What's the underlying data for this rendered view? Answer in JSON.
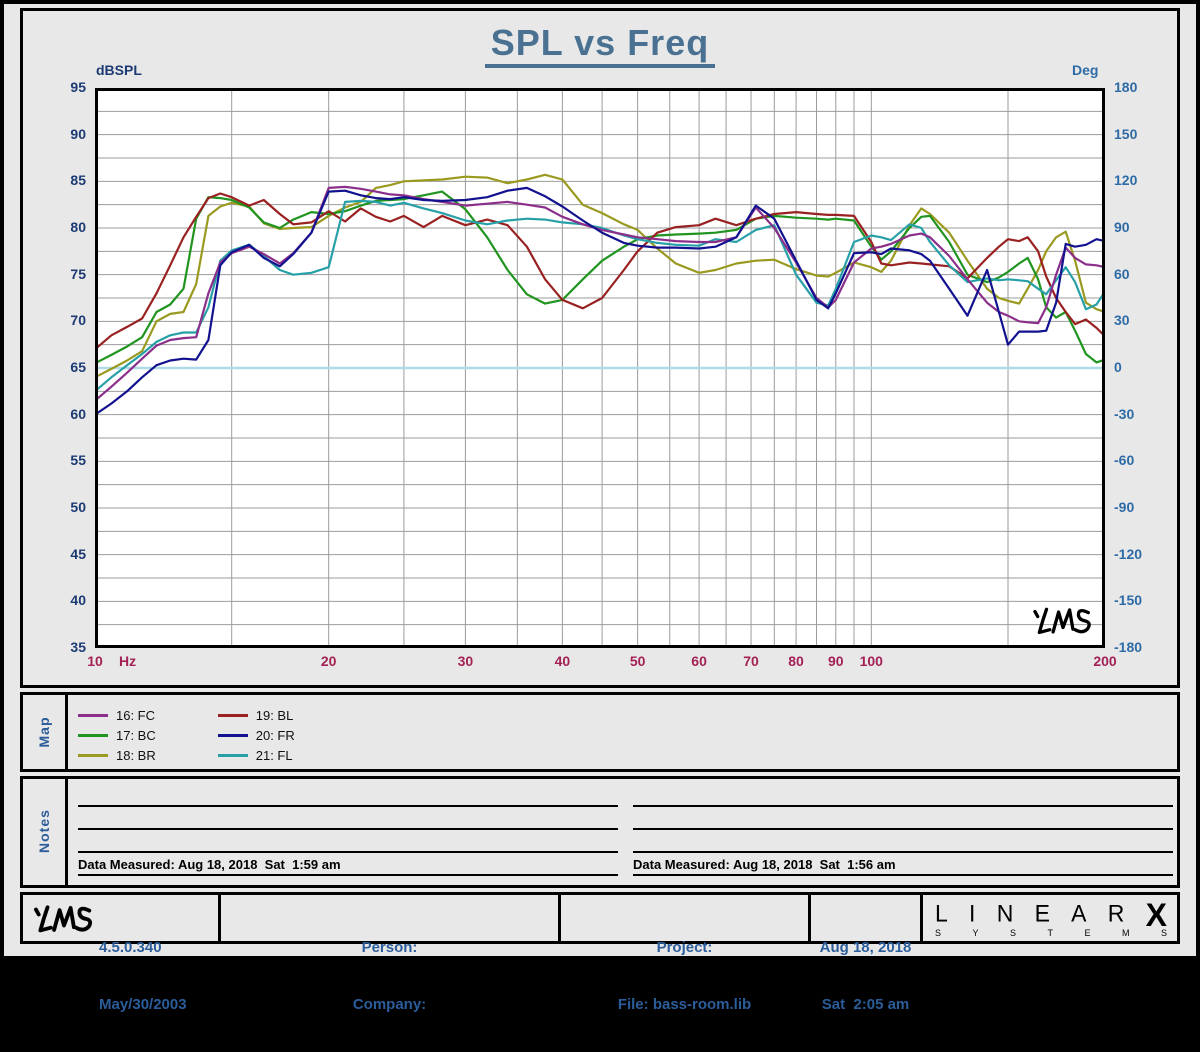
{
  "title": "SPL vs Freq",
  "chart_data": {
    "type": "line",
    "title": "SPL vs Freq",
    "x_axis": {
      "unit": "Hz",
      "scale": "log",
      "min": 10,
      "max": 200,
      "ticks": [
        {
          "f": 10,
          "label": "10"
        },
        {
          "f": 20,
          "label": "20"
        },
        {
          "f": 30,
          "label": "30"
        },
        {
          "f": 40,
          "label": "40"
        },
        {
          "f": 50,
          "label": "50"
        },
        {
          "f": 60,
          "label": "60"
        },
        {
          "f": 70,
          "label": "70"
        },
        {
          "f": 80,
          "label": "80"
        },
        {
          "f": 90,
          "label": "90"
        },
        {
          "f": 100,
          "label": "100"
        },
        {
          "f": 200,
          "label": "200"
        }
      ]
    },
    "y_left": {
      "label": "dBSPL",
      "min": 35,
      "max": 95,
      "ticks": [
        95,
        90,
        85,
        80,
        75,
        70,
        65,
        60,
        55,
        50,
        45,
        40,
        35
      ],
      "grid_step": 2.5
    },
    "y_right": {
      "label": "Deg",
      "min": -180,
      "max": 180,
      "ticks": [
        180,
        150,
        120,
        90,
        60,
        30,
        0,
        -30,
        -60,
        -90,
        -120,
        -150,
        -180
      ]
    },
    "grid_freqs": [
      15,
      20,
      25,
      30,
      35,
      40,
      45,
      50,
      55,
      60,
      65,
      70,
      75,
      80,
      85,
      90,
      95,
      100,
      150,
      200
    ],
    "reference_line": {
      "db": 65,
      "color": "#aedbe6"
    },
    "grid_color": "#9b9b9b",
    "freqs": [
      10,
      10.5,
      11,
      11.5,
      12,
      12.5,
      13,
      13.5,
      14,
      14.5,
      15,
      15.8,
      16.5,
      17.3,
      18,
      19,
      20,
      21,
      22,
      23,
      24,
      25,
      26.5,
      28,
      30,
      32,
      34,
      36,
      38,
      40,
      42.5,
      45,
      48,
      50,
      53,
      56,
      60,
      63,
      67,
      71,
      75,
      80,
      85,
      88,
      90,
      95,
      100,
      103,
      106,
      112,
      116,
      119,
      126,
      133,
      141,
      146,
      150,
      155,
      159,
      164,
      168,
      173,
      178,
      183,
      189,
      195,
      200
    ],
    "series": [
      {
        "id": "16",
        "label": "16: FC",
        "color": "#8b2f8b",
        "values": [
          61.5,
          63.0,
          64.5,
          66.0,
          67.4,
          68.0,
          68.2,
          68.3,
          73.0,
          76.3,
          77.3,
          78.0,
          77.2,
          76.2,
          77.3,
          79.5,
          84.3,
          84.4,
          84.2,
          83.9,
          83.6,
          83.5,
          83.1,
          82.8,
          82.4,
          82.6,
          82.8,
          82.5,
          82.2,
          81.2,
          80.4,
          79.8,
          79.3,
          79.0,
          78.8,
          78.6,
          78.5,
          78.5,
          79.0,
          82.2,
          80.0,
          76.3,
          72.5,
          71.5,
          72.3,
          76.3,
          77.8,
          78.0,
          78.3,
          79.2,
          79.4,
          79.0,
          77.0,
          74.5,
          72.0,
          71.0,
          70.6,
          70.0,
          69.9,
          69.8,
          71.5,
          75.0,
          77.9,
          76.8,
          76.1,
          76.0,
          75.8
        ]
      },
      {
        "id": "17",
        "label": "17: BC",
        "color": "#1f941f",
        "values": [
          65.5,
          66.4,
          67.3,
          68.3,
          71.0,
          71.8,
          73.5,
          81.0,
          83.3,
          83.2,
          83.0,
          82.2,
          80.6,
          80.0,
          80.9,
          81.7,
          81.5,
          81.8,
          82.4,
          82.9,
          83.0,
          83.1,
          83.5,
          83.9,
          82.0,
          79.0,
          75.5,
          72.9,
          71.9,
          72.3,
          74.5,
          76.5,
          78.0,
          78.8,
          79.2,
          79.3,
          79.4,
          79.5,
          79.8,
          81.0,
          81.3,
          81.1,
          81.0,
          80.9,
          81.0,
          80.8,
          78.0,
          76.6,
          77.5,
          80.0,
          81.2,
          81.3,
          78.5,
          75.0,
          74.2,
          74.7,
          75.3,
          76.2,
          76.8,
          74.5,
          71.5,
          70.4,
          71.0,
          69.0,
          66.5,
          65.6,
          65.9
        ]
      },
      {
        "id": "18",
        "label": "18: BR",
        "color": "#9a9a20",
        "values": [
          64.0,
          64.9,
          65.8,
          66.8,
          70.0,
          70.8,
          71.0,
          74.0,
          81.3,
          82.3,
          82.7,
          82.3,
          80.5,
          79.9,
          80.0,
          80.1,
          81.3,
          82.2,
          82.8,
          84.3,
          84.6,
          85.0,
          85.1,
          85.2,
          85.5,
          85.4,
          84.8,
          85.2,
          85.7,
          85.2,
          82.5,
          81.6,
          80.4,
          79.8,
          77.8,
          76.2,
          75.2,
          75.5,
          76.2,
          76.5,
          76.6,
          75.6,
          74.9,
          74.8,
          75.2,
          76.3,
          75.8,
          75.3,
          76.5,
          80.3,
          82.1,
          81.5,
          79.5,
          76.5,
          73.5,
          72.5,
          72.2,
          71.9,
          73.5,
          75.5,
          77.5,
          79.0,
          79.6,
          76.5,
          72.0,
          71.3,
          71.0
        ]
      },
      {
        "id": "19",
        "label": "19: BL",
        "color": "#992121",
        "values": [
          67.0,
          68.5,
          69.4,
          70.3,
          73.0,
          76.0,
          79.0,
          81.2,
          83.2,
          83.7,
          83.3,
          82.4,
          83.0,
          81.5,
          80.4,
          80.6,
          81.8,
          80.7,
          82.1,
          81.2,
          80.7,
          81.3,
          80.1,
          81.3,
          80.3,
          80.9,
          80.3,
          78.0,
          74.5,
          72.3,
          71.4,
          72.5,
          75.5,
          77.5,
          79.5,
          80.1,
          80.3,
          81.0,
          80.3,
          81.0,
          81.5,
          81.7,
          81.5,
          81.4,
          81.4,
          81.3,
          78.5,
          76.2,
          76.0,
          76.3,
          76.2,
          76.1,
          75.9,
          74.6,
          76.8,
          78.0,
          78.8,
          78.6,
          79.0,
          77.5,
          74.8,
          72.5,
          71.0,
          69.7,
          70.2,
          69.3,
          68.4
        ]
      },
      {
        "id": "20",
        "label": "20: FR",
        "color": "#121290",
        "values": [
          60.0,
          61.2,
          62.5,
          64.0,
          65.3,
          65.8,
          66.0,
          65.9,
          68.0,
          76.0,
          77.4,
          78.2,
          76.8,
          75.9,
          77.2,
          79.5,
          83.9,
          84.0,
          83.5,
          83.2,
          83.1,
          83.3,
          83.0,
          82.9,
          83.0,
          83.3,
          84.0,
          84.3,
          83.4,
          82.3,
          80.8,
          79.5,
          78.4,
          78.1,
          77.9,
          77.9,
          77.8,
          78.0,
          79.0,
          82.4,
          81.0,
          76.5,
          72.3,
          71.4,
          73.0,
          77.3,
          77.4,
          77.2,
          77.8,
          77.6,
          77.2,
          76.5,
          73.5,
          70.6,
          75.5,
          71.0,
          67.5,
          68.9,
          68.9,
          68.9,
          69.0,
          72.0,
          78.3,
          78.0,
          78.2,
          78.8,
          78.6
        ]
      },
      {
        "id": "21",
        "label": "21: FL",
        "color": "#28a0a8",
        "values": [
          62.5,
          64.0,
          65.3,
          66.5,
          67.8,
          68.5,
          68.8,
          68.8,
          71.5,
          76.5,
          77.6,
          78.2,
          77.0,
          75.5,
          75.0,
          75.2,
          75.8,
          82.8,
          82.9,
          82.8,
          82.4,
          82.7,
          82.1,
          81.6,
          80.8,
          80.4,
          80.8,
          81.0,
          80.9,
          80.6,
          80.4,
          80.0,
          79.2,
          78.8,
          78.4,
          78.2,
          78.1,
          78.8,
          78.5,
          79.8,
          80.3,
          75.0,
          72.0,
          71.7,
          73.5,
          78.5,
          79.2,
          79.0,
          78.7,
          80.4,
          80.0,
          78.5,
          76.0,
          74.2,
          74.6,
          74.4,
          74.5,
          74.4,
          74.3,
          73.5,
          72.9,
          74.4,
          75.8,
          74.2,
          71.3,
          71.8,
          73.2
        ]
      }
    ],
    "z_order": [
      2,
      1,
      3,
      5,
      0,
      4
    ],
    "legend_columns": [
      [
        0,
        1,
        2
      ],
      [
        3,
        4,
        5
      ]
    ],
    "legend_position": "bottom-map-panel",
    "grid": true
  },
  "map_panel": {
    "title": "Map"
  },
  "notes_panel": {
    "title": "Notes",
    "left_caption": "Data Measured: Aug 18, 2018  Sat  1:59 am",
    "right_caption": "Data Measured: Aug 18, 2018  Sat  1:56 am"
  },
  "footer": {
    "version": "4.5.0.340",
    "version_date": "May/30/2003",
    "person_label": "Person:",
    "company_label": "Company:",
    "project_label": "Project:",
    "file_label": "File: bass-room.lib",
    "date_line1": "Aug 18, 2018",
    "date_line2": "Sat  2:05 am",
    "brand_letters": "LINEAR",
    "brand_x": "X",
    "brand_sub": "SYSTEMS"
  }
}
